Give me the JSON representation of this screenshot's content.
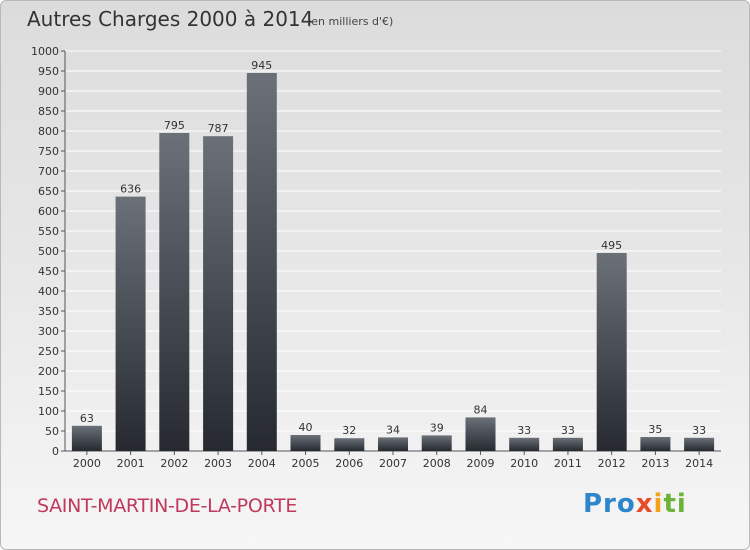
{
  "header": {
    "title": "Autres Charges 2000 à 2014",
    "unit": "(en milliers d'€)"
  },
  "footer": {
    "commune": "SAINT-MARTIN-DE-LA-PORTE",
    "logo_parts": [
      "Pro",
      "x",
      "i",
      "ti"
    ]
  },
  "colors": {
    "bar_top": "#6b7079",
    "bar_bottom": "#262a30",
    "commune": "#c0395b",
    "grid": "#ffffff"
  },
  "chart_data": {
    "type": "bar",
    "title": "Autres Charges 2000 à 2014",
    "subtitle": "(en milliers d'€)",
    "categories": [
      "2000",
      "2001",
      "2002",
      "2003",
      "2004",
      "2005",
      "2006",
      "2007",
      "2008",
      "2009",
      "2010",
      "2011",
      "2012",
      "2013",
      "2014"
    ],
    "values": [
      63,
      636,
      795,
      787,
      945,
      40,
      32,
      34,
      39,
      84,
      33,
      33,
      495,
      35,
      33
    ],
    "ylim": [
      0,
      1000
    ],
    "ytick_step": 50,
    "grid": true,
    "data_labels": true
  }
}
